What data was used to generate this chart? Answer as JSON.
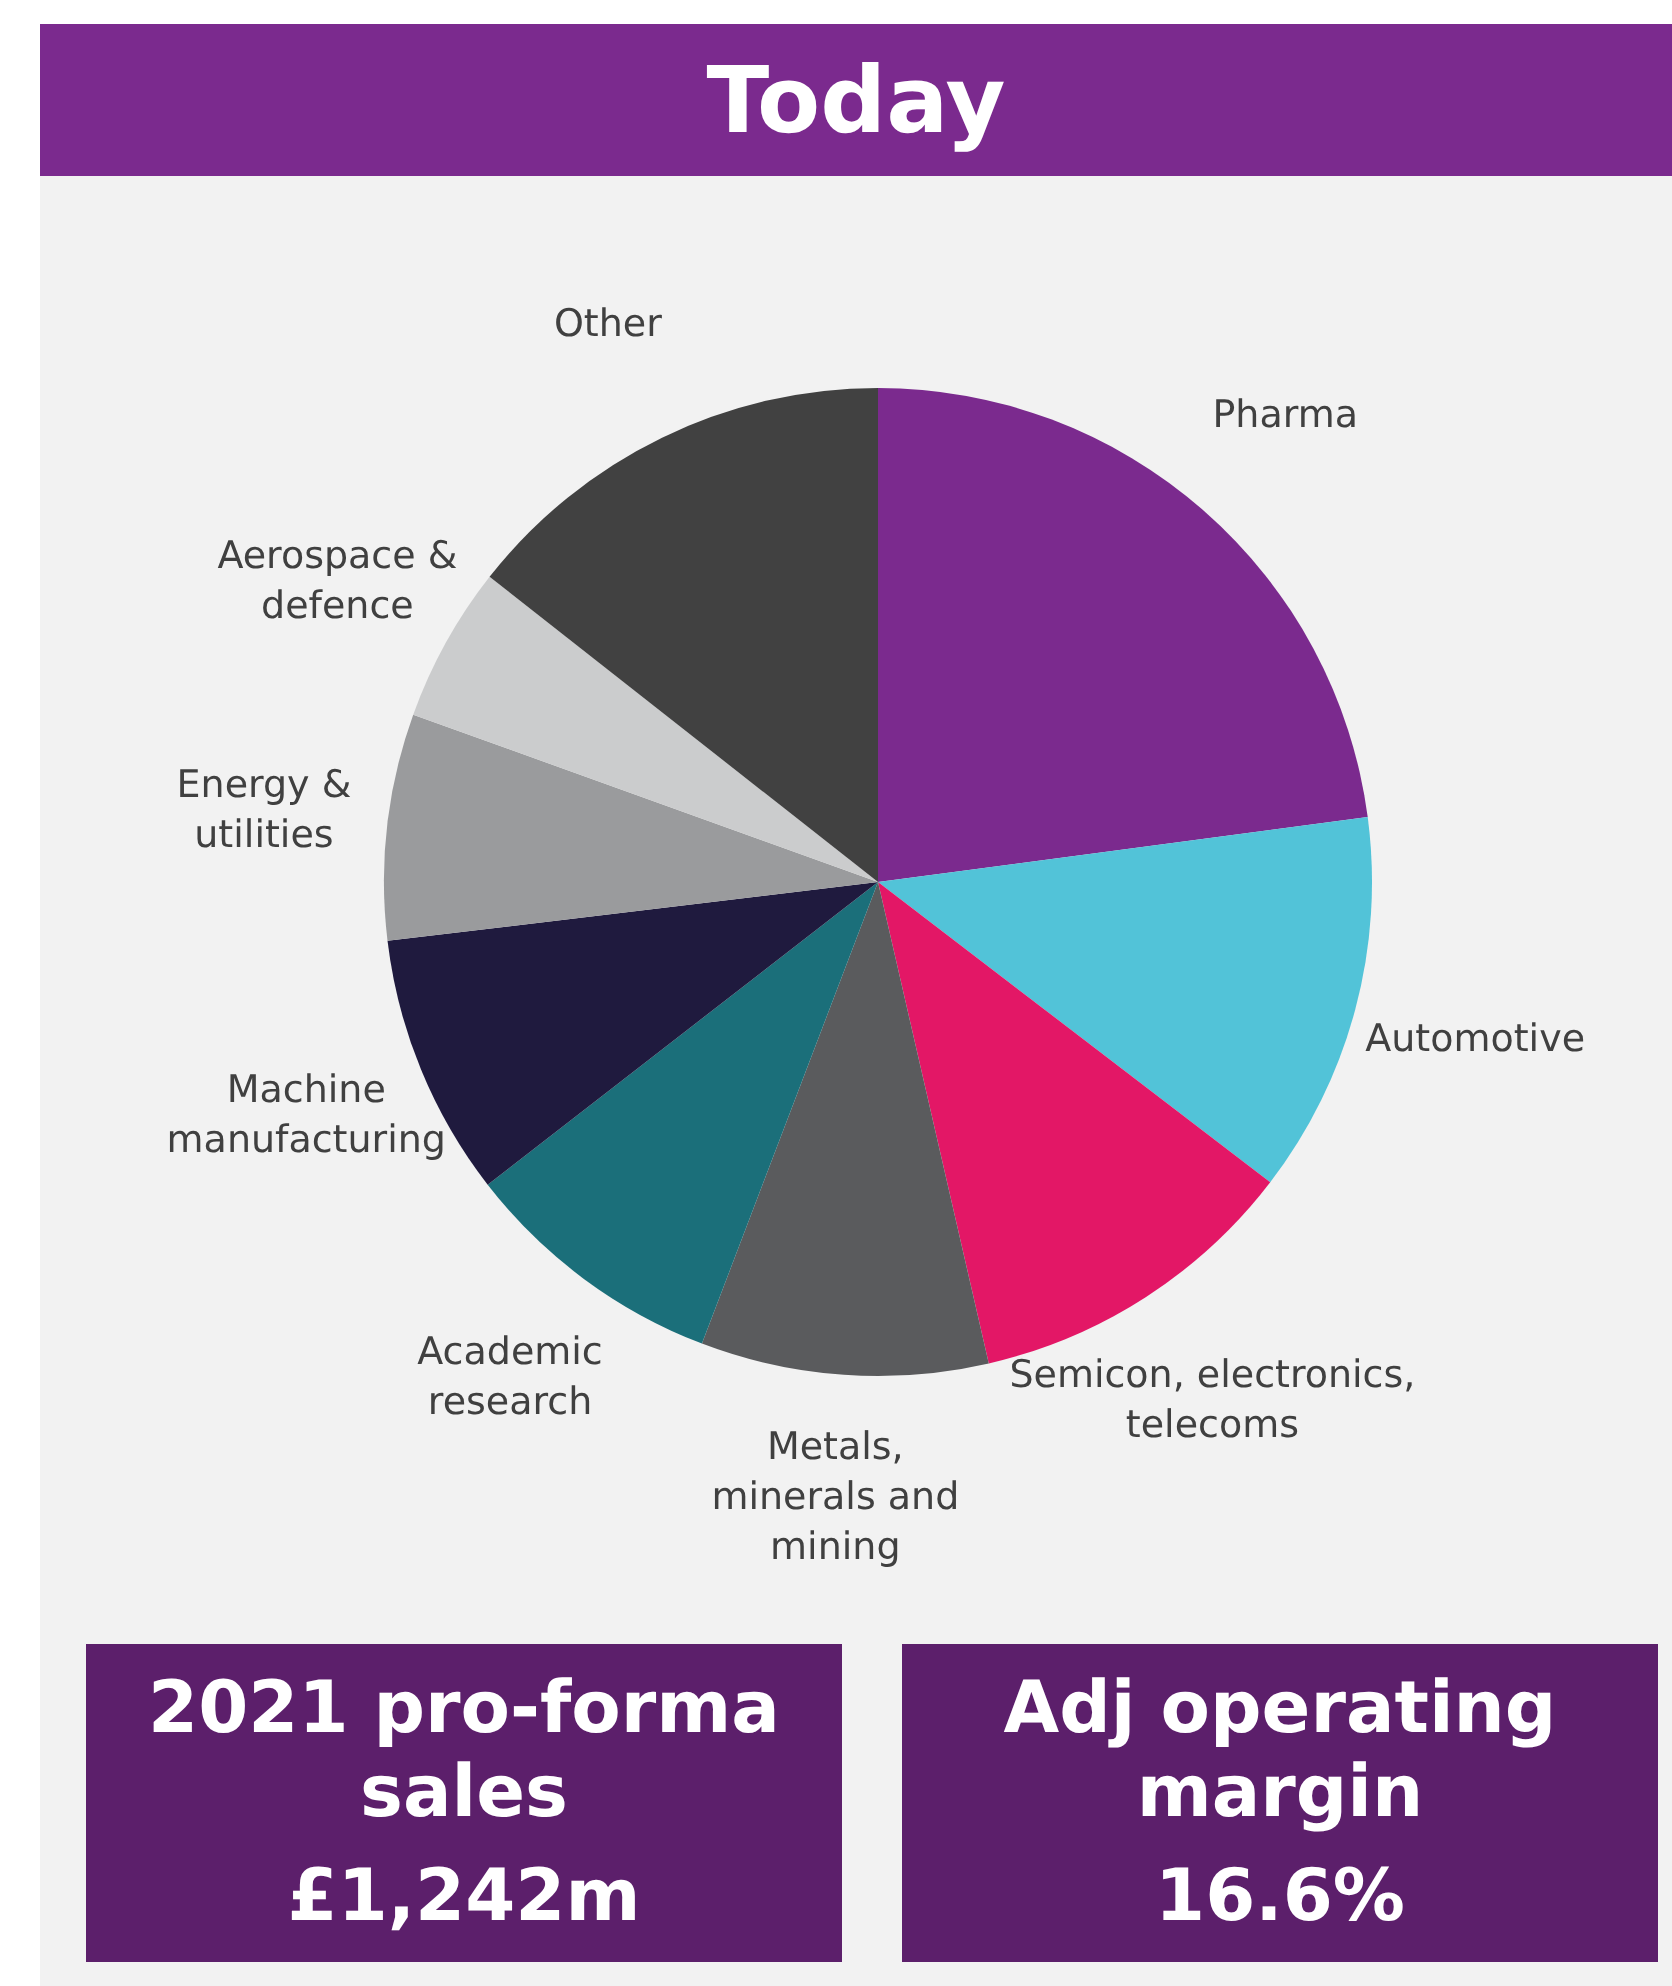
{
  "chart_data": {
    "type": "pie",
    "title": "Today",
    "categories": [
      "Pharma",
      "Automotive",
      "Semicon, electronics, telecoms",
      "Metals, minerals and mining",
      "Academic research",
      "Machine manufacturing",
      "Energy & utilities",
      "Aerospace & defence",
      "Other"
    ],
    "values": [
      22.9,
      12.5,
      11.0,
      9.4,
      8.7,
      8.6,
      7.4,
      5.1,
      14.4
    ],
    "colors": [
      "#7b2a8e",
      "#52c3d8",
      "#e31766",
      "#5a5b5d",
      "#1b6f7a",
      "#1f1a3e",
      "#9a9b9d",
      "#cbcccd",
      "#414141"
    ],
    "annotations": [
      "2021 pro-forma sales",
      "£1,242m",
      "Adj operating margin",
      "16.6%"
    ],
    "legend": false
  }
}
